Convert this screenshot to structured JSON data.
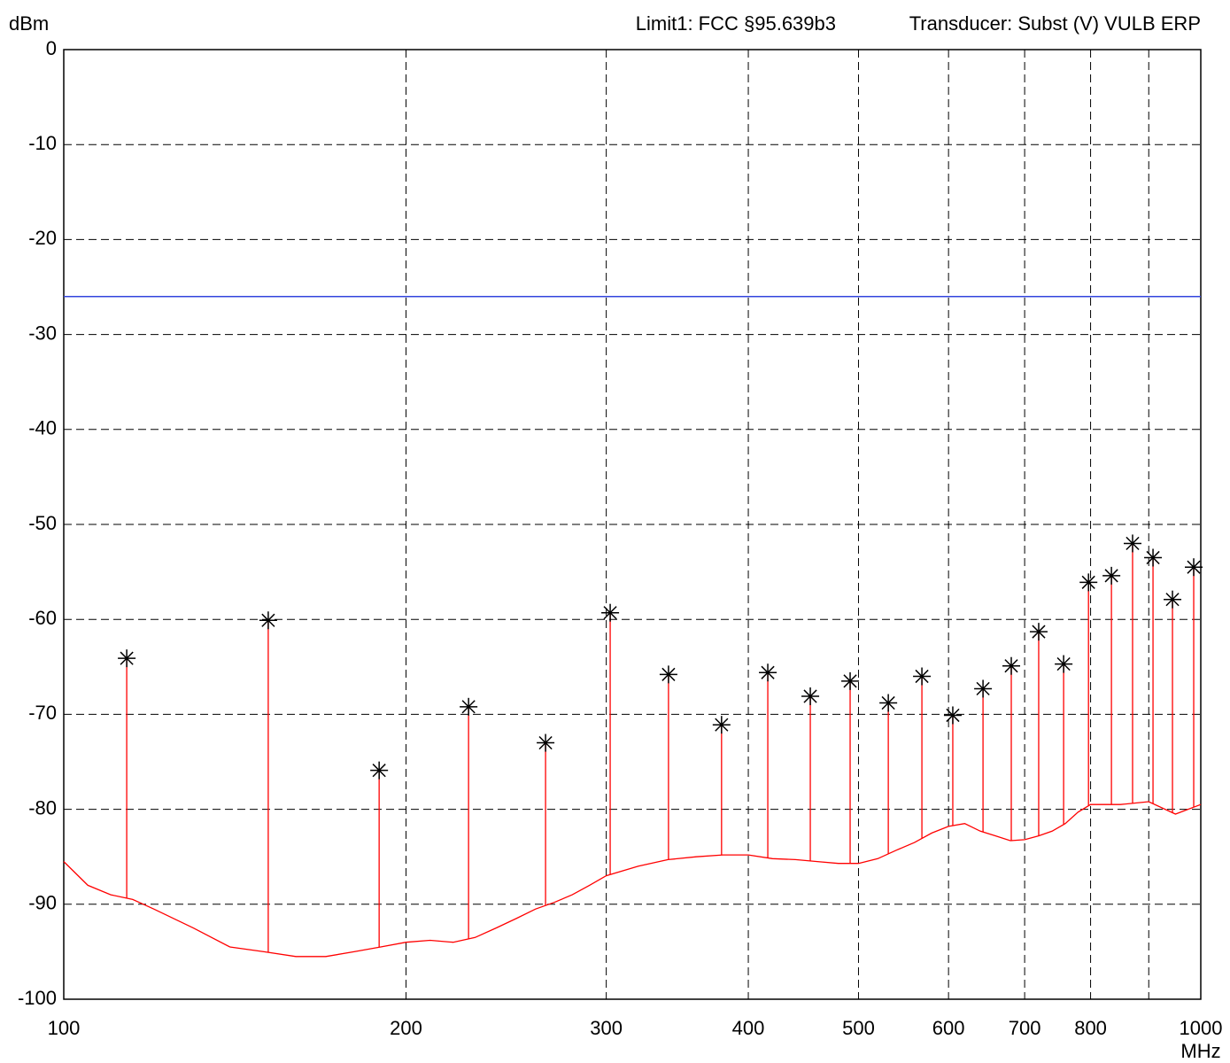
{
  "chart_data": {
    "type": "line",
    "y_label": "dBm",
    "x_label": "MHz",
    "annotations": [
      "Limit1: FCC §95.639b3",
      "Transducer: Subst (V) VULB ERP"
    ],
    "xscale": "log",
    "grid": true,
    "xlim": [
      100,
      1000
    ],
    "ylim": [
      -100,
      0
    ],
    "xticks": [
      100,
      200,
      300,
      400,
      500,
      600,
      700,
      800,
      1000
    ],
    "xgrid": [
      200,
      300,
      400,
      500,
      600,
      700,
      800,
      900
    ],
    "yticks": [
      0,
      -10,
      -20,
      -30,
      -40,
      -50,
      -60,
      -70,
      -80,
      -90,
      -100
    ],
    "limit": {
      "value": -26,
      "color": "#3344dd"
    },
    "trace": {
      "color": "#ff0000",
      "x": [
        100,
        105,
        110,
        115,
        120,
        130,
        140,
        150,
        160,
        170,
        180,
        190,
        200,
        210,
        220,
        230,
        240,
        250,
        260,
        270,
        280,
        290,
        300,
        320,
        340,
        360,
        380,
        400,
        420,
        440,
        460,
        480,
        500,
        520,
        540,
        560,
        580,
        600,
        620,
        640,
        660,
        680,
        700,
        720,
        740,
        760,
        780,
        800,
        850,
        900,
        950,
        1000
      ],
      "values": [
        -85.5,
        -88,
        -89,
        -89.5,
        -90.5,
        -92.5,
        -94.5,
        -95,
        -95.5,
        -95.5,
        -95,
        -94.5,
        -94,
        -93.8,
        -94,
        -93.5,
        -92.5,
        -91.5,
        -90.5,
        -89.8,
        -89,
        -88,
        -87,
        -86,
        -85.3,
        -85,
        -84.8,
        -84.8,
        -85.2,
        -85.3,
        -85.5,
        -85.7,
        -85.7,
        -85.2,
        -84.3,
        -83.5,
        -82.5,
        -81.8,
        -81.5,
        -82.3,
        -82.8,
        -83.3,
        -83.2,
        -82.8,
        -82.3,
        -81.5,
        -80.3,
        -79.5,
        -79.5,
        -79.2,
        -80.5,
        -79.5
      ]
    },
    "peaks": {
      "color": "#000000",
      "x": [
        113.6,
        151.3,
        189.4,
        227.0,
        265.3,
        302.4,
        340.3,
        378.9,
        416.1,
        453.5,
        491.6,
        531.1,
        568.5,
        605.2,
        643.4,
        681.3,
        720.2,
        757.5,
        796.6,
        834.5,
        871.0,
        907.8,
        944.3,
        985.8
      ],
      "values": [
        -64.1,
        -60.1,
        -75.9,
        -69.2,
        -73.0,
        -59.3,
        -65.8,
        -71.1,
        -65.6,
        -68.1,
        -66.5,
        -68.8,
        -66.0,
        -70.1,
        -67.3,
        -64.9,
        -61.3,
        -64.7,
        -56.1,
        -55.4,
        -52.0,
        -53.5,
        -57.9,
        -54.5
      ]
    }
  }
}
